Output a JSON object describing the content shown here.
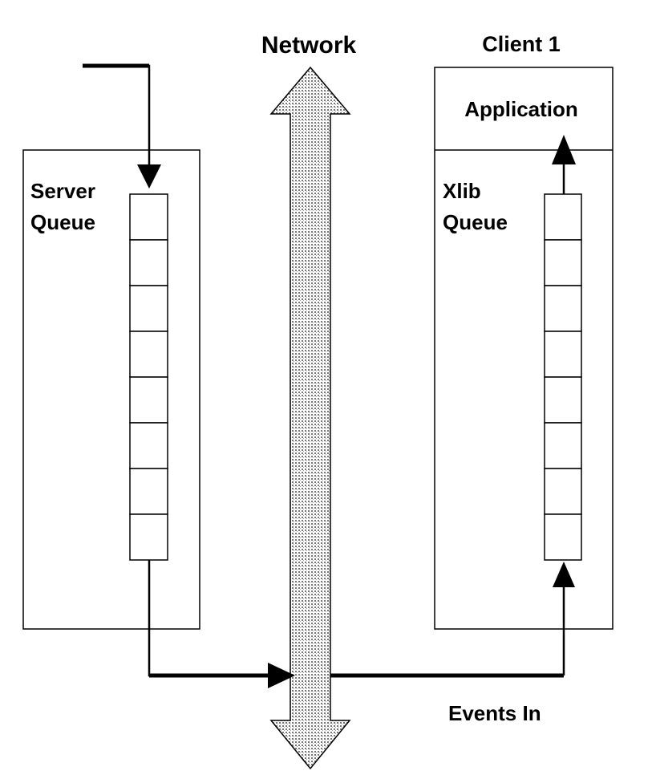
{
  "labels": {
    "network": "Network",
    "client": "Client 1",
    "application": "Application",
    "server_queue_line1": "Server",
    "server_queue_line2": "Queue",
    "xlib_queue_line1": "Xlib",
    "xlib_queue_line2": "Queue",
    "events_in": "Events In"
  },
  "queues": {
    "server_cell_count": 8,
    "xlib_cell_count": 8
  },
  "colors": {
    "ink": "#000000",
    "background": "#ffffff",
    "network_dots": "#777777"
  }
}
